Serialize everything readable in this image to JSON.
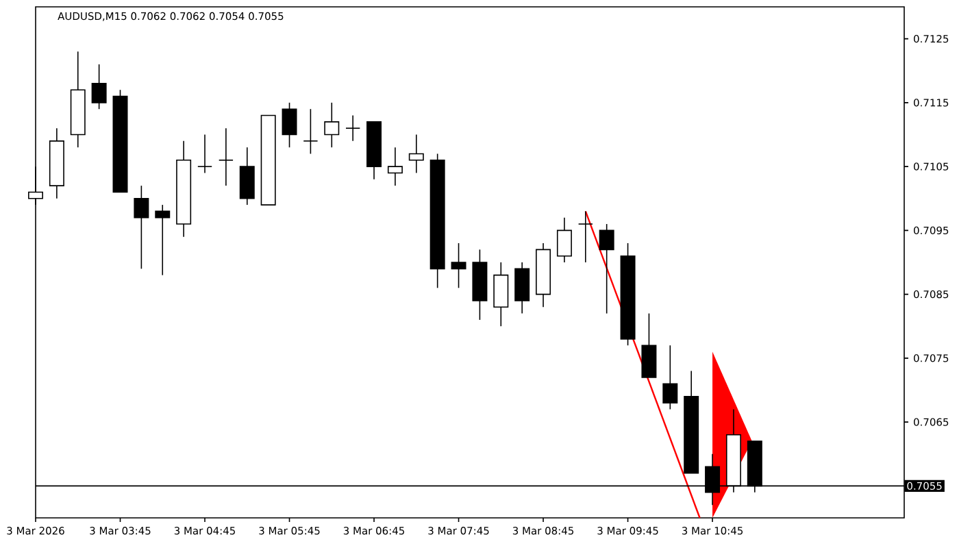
{
  "chart_data": {
    "type": "candlestick",
    "title": "AUDUSD,M15  0.7062 0.7062 0.7054 0.7055",
    "x": [
      "2026-03-03T02:45",
      "2026-03-03T03:00",
      "2026-03-03T03:15",
      "2026-03-03T03:30",
      "2026-03-03T03:45",
      "2026-03-03T04:00",
      "2026-03-03T04:15",
      "2026-03-03T04:30",
      "2026-03-03T04:45",
      "2026-03-03T05:00",
      "2026-03-03T05:15",
      "2026-03-03T05:30",
      "2026-03-03T05:45",
      "2026-03-03T06:00",
      "2026-03-03T06:15",
      "2026-03-03T06:30",
      "2026-03-03T06:45",
      "2026-03-03T07:00",
      "2026-03-03T07:15",
      "2026-03-03T07:30",
      "2026-03-03T07:45",
      "2026-03-03T08:00",
      "2026-03-03T08:15",
      "2026-03-03T08:30",
      "2026-03-03T08:45",
      "2026-03-03T09:00",
      "2026-03-03T09:15",
      "2026-03-03T09:30",
      "2026-03-03T09:45",
      "2026-03-03T10:00",
      "2026-03-03T10:15",
      "2026-03-03T10:30",
      "2026-03-03T10:45",
      "2026-03-03T11:00",
      "2026-03-03T11:15"
    ],
    "ohlc": [
      [
        0.71,
        0.7105,
        0.7099,
        0.7101
      ],
      [
        0.7102,
        0.7111,
        0.71,
        0.7109
      ],
      [
        0.711,
        0.7123,
        0.7108,
        0.7117
      ],
      [
        0.7118,
        0.7121,
        0.7114,
        0.7115
      ],
      [
        0.7116,
        0.7117,
        0.7101,
        0.7101
      ],
      [
        0.71,
        0.7102,
        0.7089,
        0.7097
      ],
      [
        0.7098,
        0.7099,
        0.7088,
        0.7097
      ],
      [
        0.7096,
        0.7109,
        0.7094,
        0.7106
      ],
      [
        0.7105,
        0.711,
        0.7104,
        0.7105
      ],
      [
        0.7106,
        0.7111,
        0.7102,
        0.7106
      ],
      [
        0.7105,
        0.7108,
        0.7099,
        0.71
      ],
      [
        0.7099,
        0.7113,
        0.7099,
        0.7113
      ],
      [
        0.7114,
        0.7115,
        0.7108,
        0.711
      ],
      [
        0.7109,
        0.7114,
        0.7107,
        0.7109
      ],
      [
        0.711,
        0.7115,
        0.7108,
        0.7112
      ],
      [
        0.7111,
        0.7113,
        0.7109,
        0.7111
      ],
      [
        0.7112,
        0.7112,
        0.7103,
        0.7105
      ],
      [
        0.7104,
        0.7108,
        0.7102,
        0.7105
      ],
      [
        0.7106,
        0.711,
        0.7104,
        0.7107
      ],
      [
        0.7106,
        0.7107,
        0.7086,
        0.7089
      ],
      [
        0.709,
        0.7093,
        0.7086,
        0.7089
      ],
      [
        0.709,
        0.7092,
        0.7081,
        0.7084
      ],
      [
        0.7083,
        0.709,
        0.708,
        0.7088
      ],
      [
        0.7089,
        0.709,
        0.7082,
        0.7084
      ],
      [
        0.7085,
        0.7093,
        0.7083,
        0.7092
      ],
      [
        0.7091,
        0.7097,
        0.709,
        0.7095
      ],
      [
        0.7096,
        0.7098,
        0.709,
        0.7096
      ],
      [
        0.7095,
        0.7096,
        0.7082,
        0.7092
      ],
      [
        0.7091,
        0.7093,
        0.7077,
        0.7078
      ],
      [
        0.7077,
        0.7082,
        0.7072,
        0.7072
      ],
      [
        0.7071,
        0.7077,
        0.7067,
        0.7068
      ],
      [
        0.7069,
        0.7073,
        0.7057,
        0.7057
      ],
      [
        0.7058,
        0.706,
        0.7052,
        0.7054
      ],
      [
        0.7055,
        0.7067,
        0.7054,
        0.7063
      ],
      [
        0.7062,
        0.7062,
        0.7054,
        0.7055
      ]
    ],
    "colors": [
      "#ffffff",
      "#ffffff",
      "#ffffff",
      "#000000",
      "#000000",
      "#000000",
      "#000000",
      "#ffffff",
      "#000000",
      "#000000",
      "#000000",
      "#ffffff",
      "#000000",
      "#000000",
      "#ffffff",
      "#000000",
      "#000000",
      "#ffffff",
      "#ffffff",
      "#000000",
      "#000000",
      "#000000",
      "#ffffff",
      "#000000",
      "#ffffff",
      "#ffffff",
      "#000000",
      "#000000",
      "#000000",
      "#000000",
      "#000000",
      "#000000",
      "#000000",
      "#ffffff",
      "#000000"
    ],
    "series": [
      {
        "type": "line",
        "color": "#ff0000",
        "x": [
          "2026-03-03T09:15",
          "2026-03-03T10:36"
        ],
        "values": [
          0.7098,
          0.705
        ]
      },
      {
        "type": "area",
        "color": "#ff0000",
        "x": [
          "2026-03-03T10:45",
          "2026-03-03T11:13",
          "2026-03-03T10:45"
        ],
        "values": [
          0.7076,
          0.7062,
          0.705
        ]
      }
    ],
    "xlim": [
      "2026-03-03T02:45",
      "2026-03-03T13:01"
    ],
    "xticks": [
      {
        "value": "2026-03-03T02:45",
        "label": "3 Mar 2026"
      },
      {
        "value": "2026-03-03T03:45",
        "label": "3 Mar 03:45"
      },
      {
        "value": "2026-03-03T04:45",
        "label": "3 Mar 04:45"
      },
      {
        "value": "2026-03-03T05:45",
        "label": "3 Mar 05:45"
      },
      {
        "value": "2026-03-03T06:45",
        "label": "3 Mar 06:45"
      },
      {
        "value": "2026-03-03T07:45",
        "label": "3 Mar 07:45"
      },
      {
        "value": "2026-03-03T08:45",
        "label": "3 Mar 08:45"
      },
      {
        "value": "2026-03-03T09:45",
        "label": "3 Mar 09:45"
      },
      {
        "value": "2026-03-03T10:45",
        "label": "3 Mar 10:45"
      }
    ],
    "ylim": [
      0.705,
      0.713
    ],
    "yticks": [
      0.7065,
      0.7075,
      0.7085,
      0.7095,
      0.7105,
      0.7115,
      0.7125
    ],
    "ref_lines": [
      {
        "axis": "y",
        "value": 0.7055,
        "label": "0.7055",
        "color": "#000000"
      }
    ]
  }
}
